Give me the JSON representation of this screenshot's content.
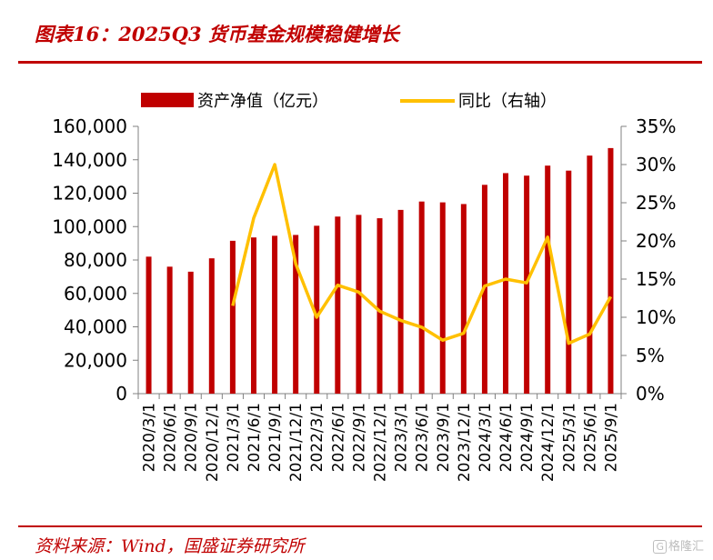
{
  "title": "图表16：2025Q3 货币基金规模稳健增长",
  "source": "资料来源：Wind，国盛证券研究所",
  "watermark": "格隆汇",
  "colors": {
    "bar": "#c00000",
    "line": "#ffc000",
    "accent": "#c00000"
  },
  "chart_data": {
    "type": "bar",
    "categories": [
      "2020/3/1",
      "2020/6/1",
      "2020/9/1",
      "2020/12/1",
      "2021/3/1",
      "2021/6/1",
      "2021/9/1",
      "2021/12/1",
      "2022/3/1",
      "2022/6/1",
      "2022/9/1",
      "2022/12/1",
      "2023/3/1",
      "2023/6/1",
      "2023/9/1",
      "2023/12/1",
      "2024/3/1",
      "2024/6/1",
      "2024/9/1",
      "2024/12/1",
      "2025/3/1",
      "2025/6/1",
      "2025/9/1"
    ],
    "series": [
      {
        "name": "资产净值（亿元）",
        "type": "bar",
        "axis": "left",
        "values": [
          82000,
          76000,
          73000,
          81000,
          91500,
          93500,
          94500,
          95000,
          100500,
          106000,
          107000,
          105000,
          110000,
          115000,
          114500,
          113500,
          125000,
          132000,
          130500,
          136500,
          133500,
          142500,
          147000
        ]
      },
      {
        "name": "同比（右轴）",
        "type": "line",
        "axis": "right",
        "values": [
          null,
          null,
          null,
          null,
          11.5,
          23,
          30,
          17,
          10,
          14.2,
          13.3,
          10.8,
          9.6,
          8.7,
          7,
          7.9,
          14.1,
          15,
          14.5,
          20.5,
          6.6,
          7.8,
          12.7
        ]
      }
    ],
    "y_left": {
      "min": 0,
      "max": 160000,
      "step": 20000,
      "tick_labels": [
        "0",
        "20,000",
        "40,000",
        "60,000",
        "80,000",
        "100,000",
        "120,000",
        "140,000",
        "160,000"
      ]
    },
    "y_right": {
      "min": 0,
      "max": 35,
      "step": 5,
      "tick_labels": [
        "0%",
        "5%",
        "10%",
        "15%",
        "20%",
        "25%",
        "30%",
        "35%"
      ]
    },
    "legend_position": "top",
    "grid": false
  }
}
